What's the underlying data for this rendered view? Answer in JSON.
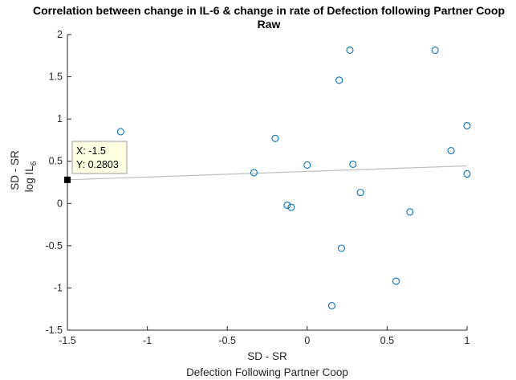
{
  "chart_data": {
    "type": "scatter",
    "title": "Correlation between change in IL-6 & change in rate of Defection following Partner Coop",
    "subtitle": "Raw",
    "xlabel": "SD - SR",
    "xlabel2": "Defection Following Partner Coop",
    "ylabel": "SD - SR",
    "ylabel2_prefix": "log IL",
    "ylabel2_sub": "6",
    "xlim": [
      -1.5,
      1
    ],
    "ylim": [
      -1.5,
      2
    ],
    "xticks": [
      -1.5,
      -1,
      -0.5,
      0,
      0.5,
      1
    ],
    "xtick_labels": [
      "-1.5",
      "-1",
      "-0.5",
      "0",
      "0.5",
      "1"
    ],
    "yticks": [
      -1.5,
      -1,
      -0.5,
      0,
      0.5,
      1,
      1.5,
      2
    ],
    "ytick_labels": [
      "-1.5",
      "-1",
      "-0.5",
      "0",
      "0.5",
      "1",
      "1.5",
      "2"
    ],
    "grid": false,
    "marker_color": "#0072BD",
    "fit_line_color": "#BDBDBD",
    "points": [
      {
        "x": -1.167,
        "y": 0.85
      },
      {
        "x": -0.333,
        "y": 0.365
      },
      {
        "x": -0.2,
        "y": 0.77
      },
      {
        "x": -0.125,
        "y": -0.02
      },
      {
        "x": -0.1,
        "y": -0.045
      },
      {
        "x": 0.0,
        "y": 0.455
      },
      {
        "x": 0.154,
        "y": -1.21
      },
      {
        "x": 0.2,
        "y": 1.46
      },
      {
        "x": 0.214,
        "y": -0.53
      },
      {
        "x": 0.267,
        "y": 1.815
      },
      {
        "x": 0.286,
        "y": 0.465
      },
      {
        "x": 0.333,
        "y": 0.13
      },
      {
        "x": 0.556,
        "y": -0.92
      },
      {
        "x": 0.643,
        "y": -0.1
      },
      {
        "x": 0.8,
        "y": 1.815
      },
      {
        "x": 0.9,
        "y": 0.625
      },
      {
        "x": 1.0,
        "y": 0.92
      },
      {
        "x": 1.0,
        "y": 0.35
      }
    ],
    "fit_line": {
      "x": [
        -1.5,
        1
      ],
      "y": [
        0.2803,
        0.445
      ]
    },
    "datatip": {
      "x": -1.5,
      "y": 0.2803,
      "line1": "X: -1.5",
      "line2": "Y: 0.2803"
    }
  }
}
